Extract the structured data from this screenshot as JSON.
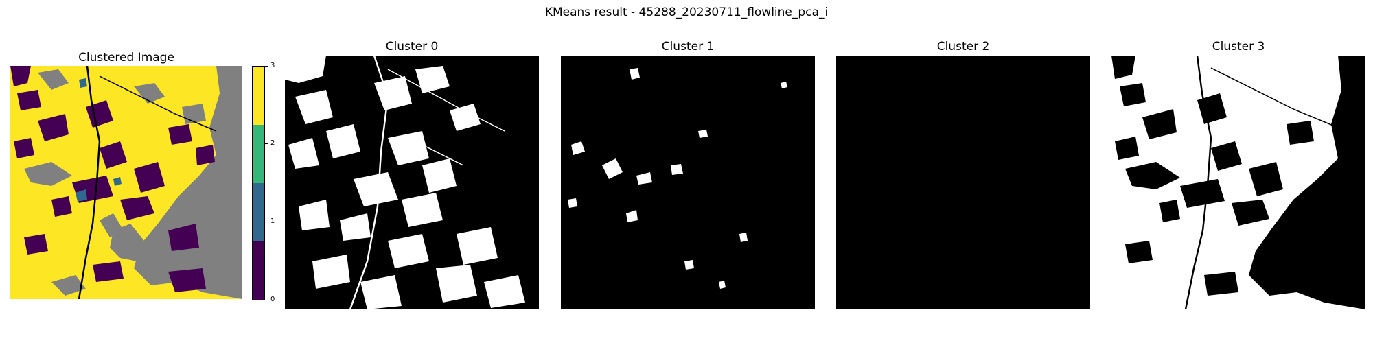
{
  "figure": {
    "suptitle": "KMeans result - 45288_20230711_flowline_pca_i"
  },
  "panels": {
    "clustered": {
      "title": "Clustered Image"
    },
    "cluster0": {
      "title": "Cluster 0"
    },
    "cluster1": {
      "title": "Cluster 1"
    },
    "cluster2": {
      "title": "Cluster 2"
    },
    "cluster3": {
      "title": "Cluster 3"
    }
  },
  "colorbar": {
    "ticks": [
      "0",
      "1",
      "2",
      "3"
    ],
    "colors": [
      "#440154",
      "#31688e",
      "#35b779",
      "#fde725"
    ]
  },
  "colors": {
    "cluster_0": "#440154",
    "cluster_1": "#31688e",
    "cluster_2": "#35b779",
    "cluster_3": "#fde725",
    "masked_background": "#808080",
    "mask_on": "#ffffff",
    "mask_off": "#000000"
  }
}
